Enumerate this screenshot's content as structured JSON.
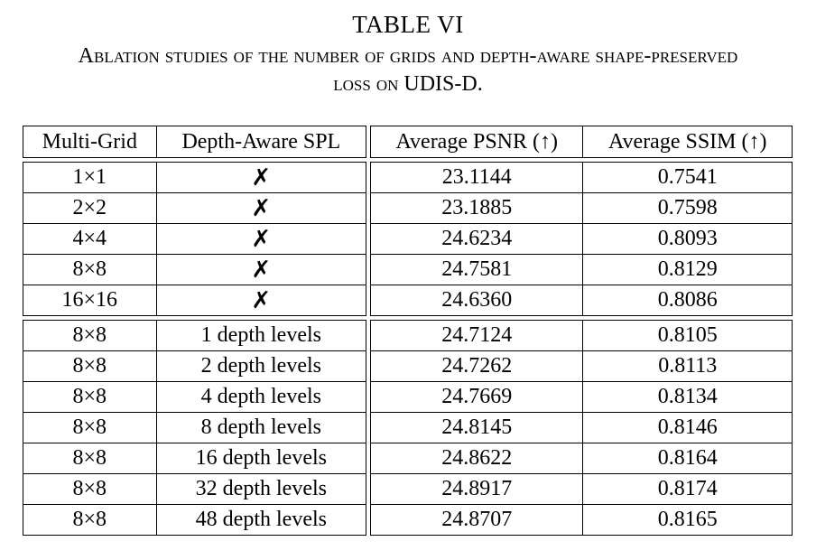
{
  "caption": {
    "label": "TABLE VI",
    "line1": "Ablation studies of the number of grids and depth-aware shape-preserved",
    "line2": "loss on UDIS-D."
  },
  "table": {
    "headers": [
      "Multi-Grid",
      "Depth-Aware SPL",
      "Average PSNR (↑)",
      "Average SSIM (↑)"
    ],
    "group1": [
      {
        "grid": "1×1",
        "spl": "✗",
        "psnr": "23.1144",
        "ssim": "0.7541",
        "best": false
      },
      {
        "grid": "2×2",
        "spl": "✗",
        "psnr": "23.1885",
        "ssim": "0.7598",
        "best": false
      },
      {
        "grid": "4×4",
        "spl": "✗",
        "psnr": "24.6234",
        "ssim": "0.8093",
        "best": false
      },
      {
        "grid": "8×8",
        "spl": "✗",
        "psnr": "24.7581",
        "ssim": "0.8129",
        "best": true
      },
      {
        "grid": "16×16",
        "spl": "✗",
        "psnr": "24.6360",
        "ssim": "0.8086",
        "best": false
      }
    ],
    "group2": [
      {
        "grid": "8×8",
        "spl": "1 depth levels",
        "psnr": "24.7124",
        "ssim": "0.8105",
        "best": false
      },
      {
        "grid": "8×8",
        "spl": "2 depth levels",
        "psnr": "24.7262",
        "ssim": "0.8113",
        "best": false
      },
      {
        "grid": "8×8",
        "spl": "4 depth levels",
        "psnr": "24.7669",
        "ssim": "0.8134",
        "best": false
      },
      {
        "grid": "8×8",
        "spl": "8 depth levels",
        "psnr": "24.8145",
        "ssim": "0.8146",
        "best": false
      },
      {
        "grid": "8×8",
        "spl": "16 depth levels",
        "psnr": "24.8622",
        "ssim": "0.8164",
        "best": false
      },
      {
        "grid": "8×8",
        "spl": "32 depth levels",
        "psnr": "24.8917",
        "ssim": "0.8174",
        "best": true
      },
      {
        "grid": "8×8",
        "spl": "48 depth levels",
        "psnr": "24.8707",
        "ssim": "0.8165",
        "best": false
      }
    ]
  }
}
